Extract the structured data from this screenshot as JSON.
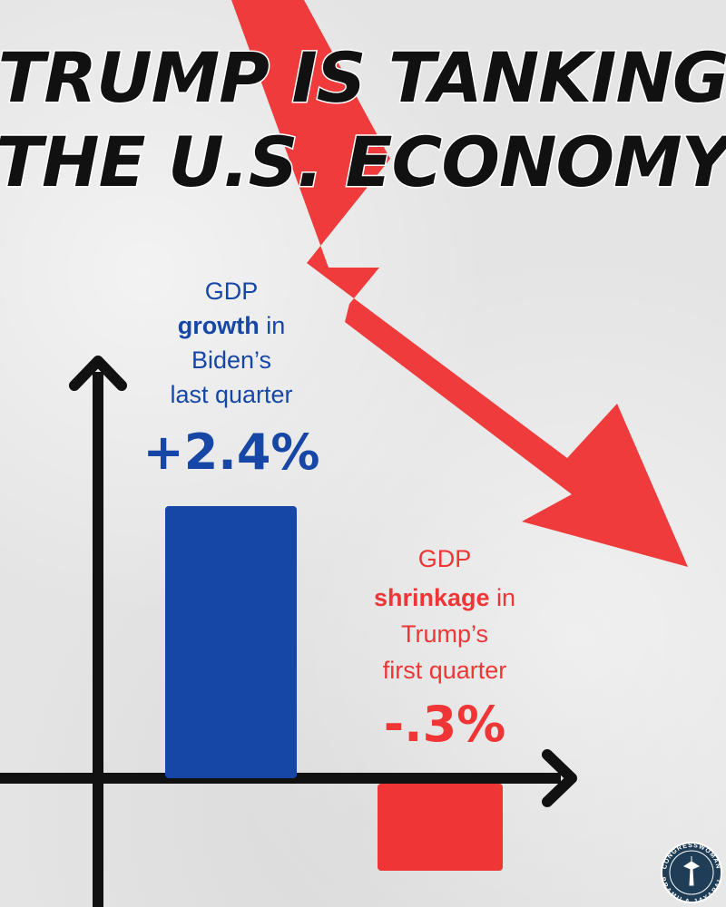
{
  "headline": {
    "line1": "TRUMP IS TANKING",
    "line2": "THE U.S. ECONOMY"
  },
  "colors": {
    "biden_blue": "#1747a6",
    "trump_red": "#ef3535",
    "arrow_red": "#ef3b3b",
    "axis": "#111111"
  },
  "chart_data": {
    "type": "bar",
    "categories": [
      "Biden's last quarter",
      "Trump's first quarter"
    ],
    "values": [
      2.4,
      -0.3
    ],
    "ylim": [
      -0.3,
      2.4
    ],
    "grid": false,
    "annotations": [
      {
        "lines": [
          "GDP",
          "growth in",
          "Biden’s",
          "last quarter"
        ],
        "bold_word": "growth",
        "value_label": "+2.4%",
        "color": "#1747a6"
      },
      {
        "lines": [
          "GDP",
          "shrinkage in",
          "Trump’s",
          "first quarter"
        ],
        "bold_word": "shrinkage",
        "value_label": "-.3%",
        "color": "#ef3535"
      }
    ]
  },
  "seal": {
    "top_text": "CONGRESSWOMAN",
    "bottom_text": "PRAMILA JAYAPAL"
  }
}
